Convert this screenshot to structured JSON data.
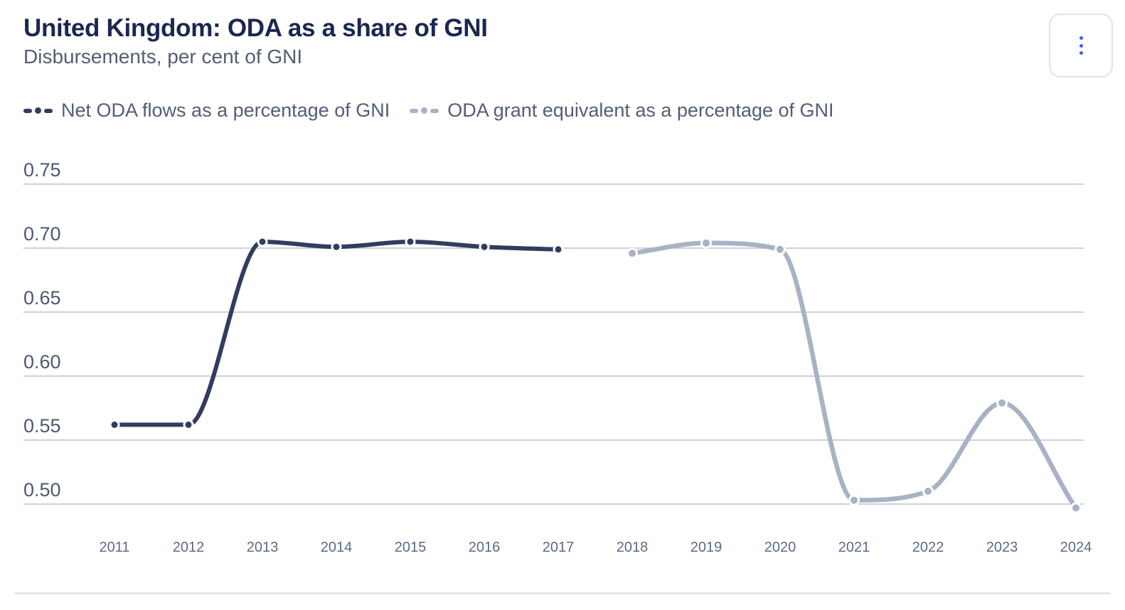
{
  "header": {
    "title": "United Kingdom: ODA as a share of GNI",
    "subtitle": "Disbursements, per cent of GNI"
  },
  "menu": {
    "icon": "kebab-menu-icon"
  },
  "legend": {
    "items": [
      {
        "label": "Net ODA flows as a percentage of GNI",
        "color": "#333b5f"
      },
      {
        "label": "ODA grant equivalent as a percentage of GNI",
        "color": "#a9b2c4"
      }
    ]
  },
  "chart_data": {
    "type": "line",
    "title": "United Kingdom: ODA as a share of GNI",
    "subtitle": "Disbursements, per cent of GNI",
    "x": [
      2011,
      2012,
      2013,
      2014,
      2015,
      2016,
      2017,
      2018,
      2019,
      2020,
      2021,
      2022,
      2023,
      2024
    ],
    "series": [
      {
        "name": "Net ODA flows as a percentage of GNI",
        "color": "#333b5f",
        "values": [
          0.562,
          0.562,
          0.705,
          0.701,
          0.705,
          0.701,
          0.699,
          null,
          null,
          null,
          null,
          null,
          null,
          null
        ]
      },
      {
        "name": "ODA grant equivalent as a percentage of GNI",
        "color": "#a9b2c4",
        "values": [
          null,
          null,
          null,
          null,
          null,
          null,
          null,
          0.696,
          0.704,
          0.699,
          0.503,
          0.51,
          0.579,
          0.497
        ]
      }
    ],
    "xlabel": "",
    "ylabel": "",
    "yticks": [
      0.5,
      0.55,
      0.6,
      0.65,
      0.7,
      0.75
    ],
    "ytick_labels": [
      "0.50",
      "0.55",
      "0.60",
      "0.65",
      "0.70",
      "0.75"
    ],
    "ylim": [
      0.475,
      0.775
    ],
    "grid": "horizontal",
    "legend_position": "top-left",
    "curve": "monotone"
  },
  "colors": {
    "background": "#ffffff",
    "title": "#1b2750",
    "subtitle": "#525e74",
    "legend_text": "#525e74",
    "y_tick_labels": "#4d5871",
    "x_tick_labels": "#5d6a85",
    "gridline": "#cbd0db",
    "divider": "#e2e6ea",
    "series_net_oda": "#333b5f",
    "series_grant_equivalent": "#a9b2c4",
    "menu_dots": "#3b64ee",
    "menu_border": "#dfe3ea"
  }
}
